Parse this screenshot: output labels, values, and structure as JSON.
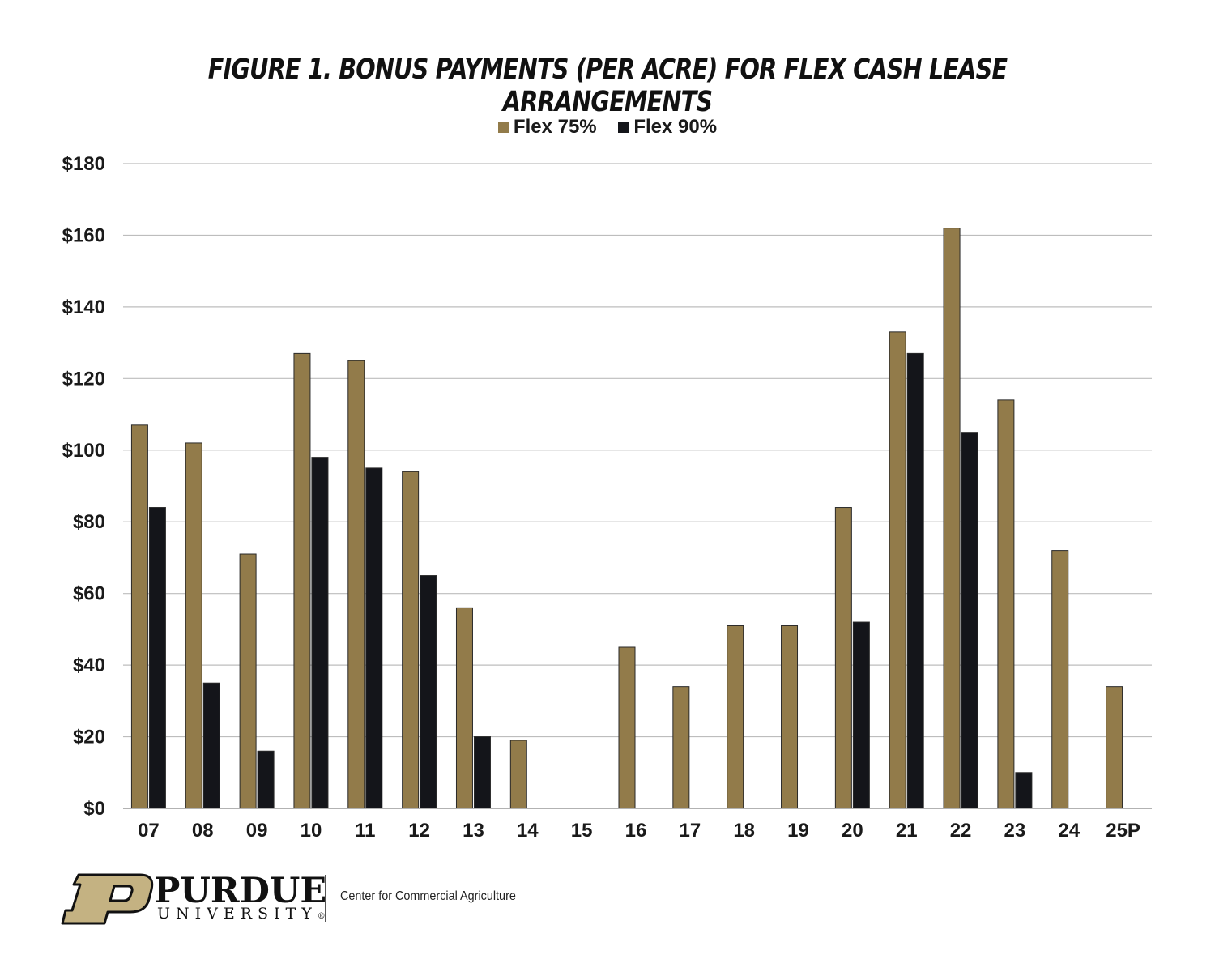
{
  "chart_data": {
    "type": "bar",
    "title": "FIGURE 1. BONUS PAYMENTS (PER ACRE) FOR FLEX CASH LEASE ARRANGEMENTS",
    "xlabel": "",
    "ylabel": "",
    "ylim": [
      0,
      180
    ],
    "yticks": [
      0,
      20,
      40,
      60,
      80,
      100,
      120,
      140,
      160,
      180
    ],
    "ytick_labels": [
      "$0",
      "$20",
      "$40",
      "$60",
      "$80",
      "$100",
      "$120",
      "$140",
      "$160",
      "$180"
    ],
    "grid": true,
    "legend_position": "top-center",
    "categories": [
      "07",
      "08",
      "09",
      "10",
      "11",
      "12",
      "13",
      "14",
      "15",
      "16",
      "17",
      "18",
      "19",
      "20",
      "21",
      "22",
      "23",
      "24",
      "25P"
    ],
    "series": [
      {
        "name": "Flex 75%",
        "color": "#927b4a",
        "values": [
          107,
          102,
          71,
          127,
          125,
          94,
          56,
          19,
          0,
          45,
          34,
          51,
          51,
          84,
          133,
          162,
          114,
          72,
          34
        ]
      },
      {
        "name": "Flex 90%",
        "color": "#14151a",
        "values": [
          84,
          35,
          16,
          98,
          95,
          65,
          20,
          0,
          0,
          0,
          0,
          0,
          0,
          52,
          127,
          105,
          10,
          0,
          0
        ]
      }
    ]
  },
  "branding": {
    "wordmark": "PURDUE",
    "subtitle": "UNIVERSITY",
    "registered": "®",
    "organization": "Center for Commercial Agriculture",
    "logo_color": "#c4b282"
  }
}
